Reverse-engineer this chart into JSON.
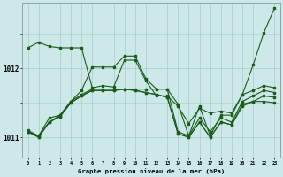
{
  "title": "Graphe pression niveau de la mer (hPa)",
  "bg_color": "#cce8e8",
  "grid_color": "#aacccc",
  "line_color": "#1a5c1a",
  "ylim": [
    1010.7,
    1012.95
  ],
  "yticks": [
    1011,
    1012
  ],
  "xlim": [
    -0.5,
    23.5
  ],
  "xticks": [
    0,
    1,
    2,
    3,
    4,
    5,
    6,
    7,
    8,
    9,
    10,
    11,
    12,
    13,
    14,
    15,
    16,
    17,
    18,
    19,
    20,
    21,
    22,
    23
  ],
  "series": [
    [
      1012.3,
      1012.38,
      1012.32,
      1012.3,
      1012.3,
      1012.3,
      1011.72,
      1011.75,
      1011.73,
      1012.12,
      1012.12,
      1011.82,
      1011.6,
      1011.6,
      1011.45,
      1011.2,
      1011.42,
      1011.35,
      1011.38,
      1011.35,
      1011.62,
      1012.05,
      1012.52,
      1012.88
    ],
    [
      1011.1,
      1011.02,
      1011.28,
      1011.32,
      1011.52,
      1011.62,
      1011.7,
      1011.7,
      1011.7,
      1011.7,
      1011.7,
      1011.7,
      1011.7,
      1011.7,
      1011.08,
      1011.02,
      1011.28,
      1011.08,
      1011.28,
      1011.22,
      1011.52,
      1011.6,
      1011.68,
      1011.65
    ],
    [
      1011.08,
      1011.0,
      1011.22,
      1011.3,
      1011.5,
      1011.6,
      1011.68,
      1011.68,
      1011.68,
      1011.7,
      1011.68,
      1011.65,
      1011.62,
      1011.58,
      1011.05,
      1011.0,
      1011.22,
      1011.0,
      1011.22,
      1011.18,
      1011.48,
      1011.52,
      1011.52,
      1011.5
    ],
    [
      1011.08,
      1011.0,
      1011.22,
      1011.3,
      1011.5,
      1011.6,
      1011.68,
      1011.68,
      1011.68,
      1011.7,
      1011.68,
      1011.65,
      1011.62,
      1011.58,
      1011.05,
      1011.0,
      1011.22,
      1011.0,
      1011.22,
      1011.18,
      1011.45,
      1011.52,
      1011.6,
      1011.58
    ],
    [
      1011.08,
      1011.02,
      1011.22,
      1011.32,
      1011.52,
      1011.68,
      1012.02,
      1012.02,
      1012.02,
      1012.18,
      1012.18,
      1011.85,
      1011.7,
      1011.7,
      1011.48,
      1011.02,
      1011.45,
      1011.02,
      1011.32,
      1011.32,
      1011.62,
      1011.68,
      1011.75,
      1011.72
    ]
  ]
}
